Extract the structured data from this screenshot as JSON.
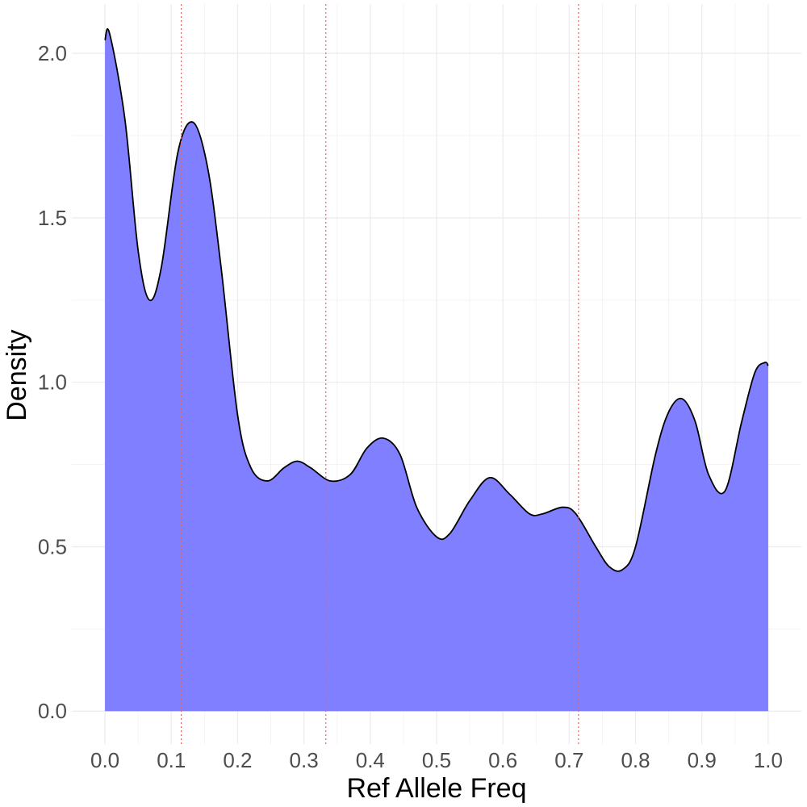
{
  "chart_data": {
    "type": "area",
    "xlabel": "Ref Allele Freq",
    "ylabel": "Density",
    "xlim": [
      -0.05,
      1.05
    ],
    "ylim": [
      -0.1,
      2.15
    ],
    "x_ticks": [
      0.0,
      0.1,
      0.2,
      0.3,
      0.4,
      0.5,
      0.6,
      0.7,
      0.8,
      0.9,
      1.0
    ],
    "x_tick_labels": [
      "0.0",
      "0.1",
      "0.2",
      "0.3",
      "0.4",
      "0.5",
      "0.6",
      "0.7",
      "0.8",
      "0.9",
      "1.0"
    ],
    "y_ticks": [
      0.0,
      0.5,
      1.0,
      1.5,
      2.0
    ],
    "y_tick_labels": [
      "0.0",
      "0.5",
      "1.0",
      "1.5",
      "2.0"
    ],
    "grid": true,
    "fill_color": "#7f7fff",
    "line_color": "#000000",
    "reference_line_color": "#e06666",
    "reference_lines_x": [
      0.115,
      0.333,
      0.714
    ],
    "series": [
      {
        "x": [
          0.0,
          0.007,
          0.03,
          0.05,
          0.067,
          0.085,
          0.11,
          0.133,
          0.155,
          0.175,
          0.2,
          0.22,
          0.245,
          0.27,
          0.29,
          0.31,
          0.34,
          0.37,
          0.395,
          0.42,
          0.445,
          0.47,
          0.5,
          0.52,
          0.55,
          0.58,
          0.61,
          0.64,
          0.66,
          0.69,
          0.71,
          0.74,
          0.76,
          0.78,
          0.8,
          0.83,
          0.85,
          0.87,
          0.89,
          0.91,
          0.935,
          0.96,
          0.98,
          0.995,
          1.0
        ],
        "y": [
          2.04,
          2.06,
          1.8,
          1.4,
          1.25,
          1.35,
          1.7,
          1.79,
          1.65,
          1.35,
          0.9,
          0.74,
          0.7,
          0.74,
          0.76,
          0.74,
          0.7,
          0.72,
          0.8,
          0.83,
          0.78,
          0.62,
          0.53,
          0.54,
          0.64,
          0.71,
          0.66,
          0.6,
          0.6,
          0.62,
          0.6,
          0.5,
          0.44,
          0.43,
          0.5,
          0.78,
          0.91,
          0.95,
          0.88,
          0.72,
          0.67,
          0.88,
          1.03,
          1.06,
          1.05
        ]
      }
    ]
  }
}
